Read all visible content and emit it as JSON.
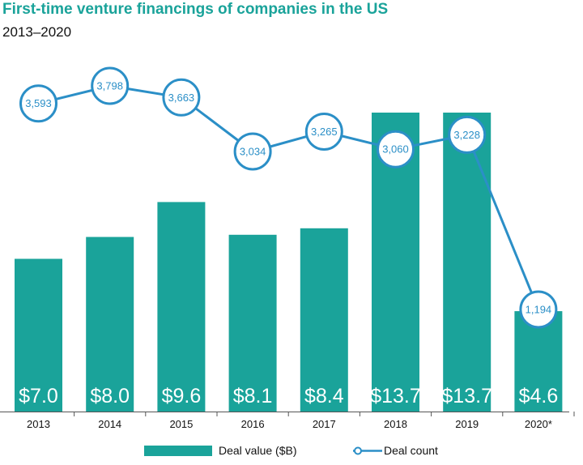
{
  "chart_data": {
    "type": "bar",
    "title": "First-time venture financings of companies in the US",
    "subtitle": "2013–2020",
    "categories": [
      "2013",
      "2014",
      "2015",
      "2016",
      "2017",
      "2018",
      "2019",
      "2020*"
    ],
    "series": [
      {
        "name": "Deal value ($B)",
        "type": "bar",
        "values": [
          7.0,
          8.0,
          9.6,
          8.1,
          8.4,
          13.7,
          13.7,
          4.6
        ],
        "labels": [
          "$7.0",
          "$8.0",
          "$9.6",
          "$8.1",
          "$8.4",
          "$13.7",
          "$13.7",
          "$4.6"
        ],
        "color": "#1aa39a"
      },
      {
        "name": "Deal count",
        "type": "line",
        "values": [
          3593,
          3798,
          3663,
          3034,
          3265,
          3060,
          3228,
          1194
        ],
        "labels": [
          "3,593",
          "3,798",
          "3,663",
          "3,034",
          "3,265",
          "3,060",
          "3,228",
          "1,194"
        ],
        "color": "#2b8fc7"
      }
    ],
    "bar_axis_range": [
      0,
      14.5
    ],
    "line_axis_range": [
      0,
      4350
    ],
    "grid": false,
    "axes_visible": false,
    "legend_position": "bottom"
  }
}
